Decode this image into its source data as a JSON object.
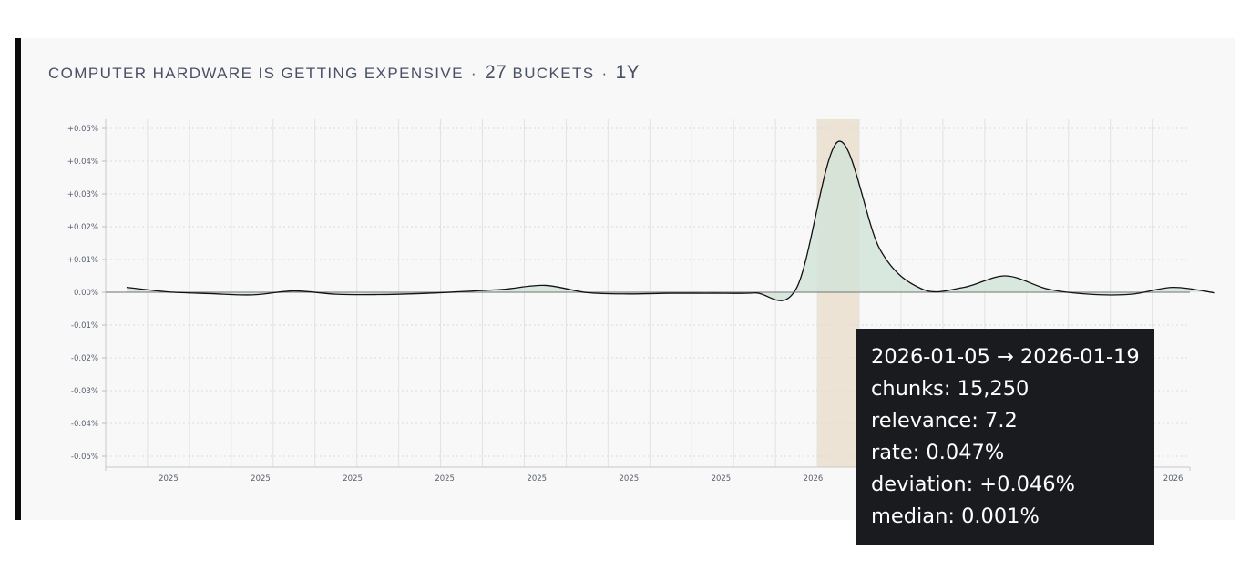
{
  "header": {
    "topic": "COMPUTER HARDWARE IS GETTING EXPENSIVE",
    "bucket_count": "27",
    "bucket_label": "BUCKETS",
    "range": "1Y"
  },
  "colors": {
    "accent": "#0b0b0c",
    "area_fill": "#cfe3d7",
    "highlight": "#e9dcc8",
    "line": "#111111",
    "tooltip_bg": "#1a1b1f"
  },
  "tooltip": {
    "range": "2026-01-05 → 2026-01-19",
    "chunks": "chunks: 15,250",
    "relevance": "relevance: 7.2",
    "rate": "rate: 0.047%",
    "deviation": "deviation: +0.046%",
    "median": "median: 0.001%"
  },
  "chart_data": {
    "type": "area",
    "title": "",
    "xlabel": "",
    "ylabel": "",
    "ylim": [
      -0.05,
      0.05
    ],
    "y_ticks": [
      "+0.05%",
      "+0.04%",
      "+0.03%",
      "+0.02%",
      "+0.01%",
      "0.00%",
      "-0.01%",
      "-0.02%",
      "-0.03%",
      "-0.04%",
      "-0.05%"
    ],
    "y_tick_values": [
      0.05,
      0.04,
      0.03,
      0.02,
      0.01,
      0.0,
      -0.01,
      -0.02,
      -0.03,
      -0.04,
      -0.05
    ],
    "x_tick_labels": [
      "2025",
      "2025",
      "2025",
      "2025",
      "2025",
      "2025",
      "2025",
      "2026",
      "2026",
      "2026",
      "2026"
    ],
    "x_tick_buckets": [
      1.0,
      3.2,
      5.4,
      7.6,
      9.8,
      12.0,
      14.2,
      16.4,
      18.6,
      20.8,
      25.0
    ],
    "x_domain": [
      -0.5,
      25.4
    ],
    "grid": true,
    "highlight_bucket": 17,
    "series": [
      {
        "values": [
          0.0015,
          0.0001,
          -0.0004,
          -0.0008,
          0.0004,
          -0.0006,
          -0.0007,
          -0.0004,
          0.0002,
          0.0009,
          0.0021,
          -0.0001,
          -0.0005,
          -0.0003,
          -0.0003,
          -0.0002,
          0.0012,
          0.046,
          0.013,
          0.001,
          0.0015,
          0.005,
          0.001,
          -0.0006,
          -0.0006,
          0.0015,
          -0.0002
        ]
      }
    ]
  }
}
